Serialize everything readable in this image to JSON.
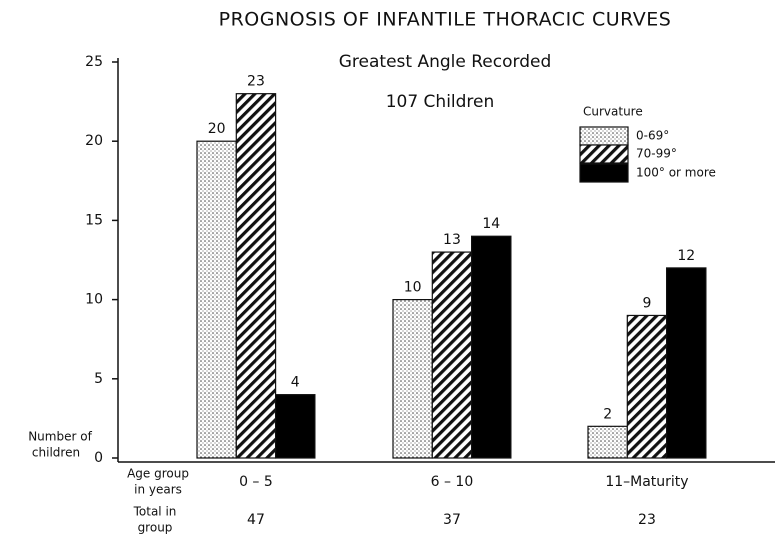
{
  "chart_data": {
    "type": "bar",
    "title": "PROGNOSIS OF INFANTILE THORACIC CURVES",
    "subtitle": "Greatest Angle Recorded",
    "annotation": "107 Children",
    "ylabel": [
      "Number of",
      "children"
    ],
    "categories_label": [
      "Age group",
      "in years"
    ],
    "totals_label": [
      "Total in",
      "group"
    ],
    "categories": [
      "0 – 5",
      "6 – 10",
      "11–Maturity"
    ],
    "group_totals": [
      47,
      37,
      23
    ],
    "legend_title": "Curvature",
    "legend": "upper right",
    "series": [
      {
        "name": "0-69°",
        "color": "#000000",
        "pattern": "dots",
        "values": [
          20,
          10,
          2
        ]
      },
      {
        "name": "70-99°",
        "color": "#000000",
        "pattern": "hatch",
        "values": [
          23,
          13,
          9
        ]
      },
      {
        "name": "100° or more",
        "color": "#000000",
        "pattern": "solid",
        "values": [
          4,
          14,
          12
        ]
      }
    ],
    "ylim": [
      0,
      25
    ],
    "yticks": [
      0,
      5,
      10,
      15,
      20,
      25
    ],
    "grid": false
  }
}
